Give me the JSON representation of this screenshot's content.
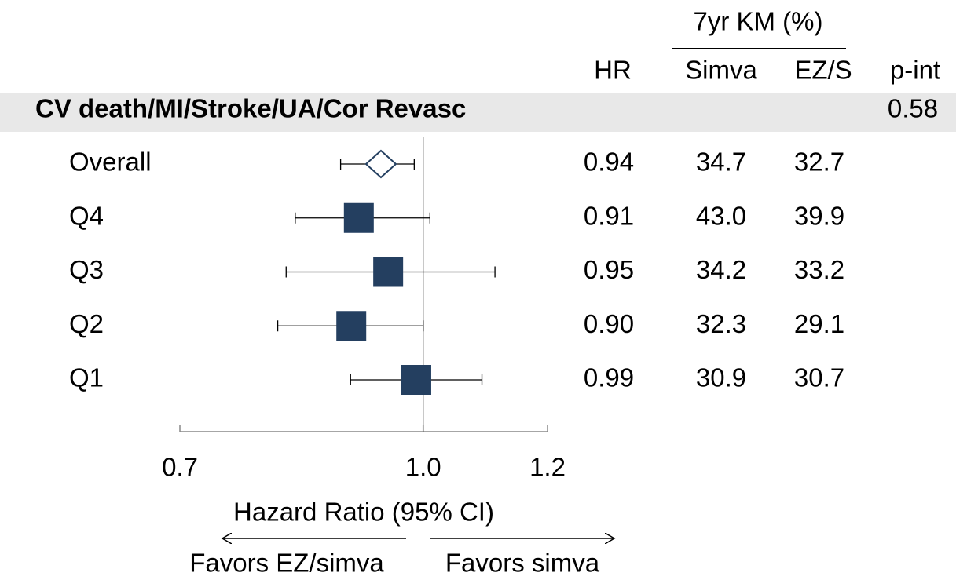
{
  "chart_data": {
    "type": "forest",
    "km_header": "7yr KM (%)",
    "hr_header": "HR",
    "simva_header": "Simva",
    "ezs_header": "EZ/S",
    "p_int_header": "p-int",
    "section": "CV death/MI/Stroke/UA/Cor Revasc",
    "p_int": 0.58,
    "categories": [
      "Overall",
      "Q4",
      "Q3",
      "Q2",
      "Q1"
    ],
    "hr": {
      "values": [
        0.94,
        0.91,
        0.95,
        0.9,
        0.99
      ],
      "value_labels": [
        "0.94",
        "0.91",
        "0.95",
        "0.90",
        "0.99"
      ]
    },
    "lower": [
      0.886,
      0.829,
      0.818,
      0.808,
      0.899
    ],
    "upper": [
      0.987,
      1.01,
      1.111,
      1.0,
      1.09
    ],
    "simva": {
      "values": [
        34.7,
        43.0,
        34.2,
        32.3,
        30.9
      ],
      "value_labels": [
        "34.7",
        "43.0",
        "34.2",
        "32.3",
        "30.9"
      ]
    },
    "ezs": {
      "values": [
        32.7,
        39.9,
        33.2,
        29.1,
        30.7
      ],
      "value_labels": [
        "32.7",
        "39.9",
        "33.2",
        "29.1",
        "30.7"
      ]
    },
    "xlabel": "Hazard Ratio (95% CI)",
    "favors_left": "Favors EZ/simva",
    "favors_right": "Favors simva",
    "xscale": "log",
    "xlim": [
      0.7,
      1.2
    ],
    "xticks": [
      0.7,
      {
        "value": 1.0,
        "label": "1.0"
      },
      1.2
    ],
    "reference": 1.0,
    "color": "#243f60"
  }
}
